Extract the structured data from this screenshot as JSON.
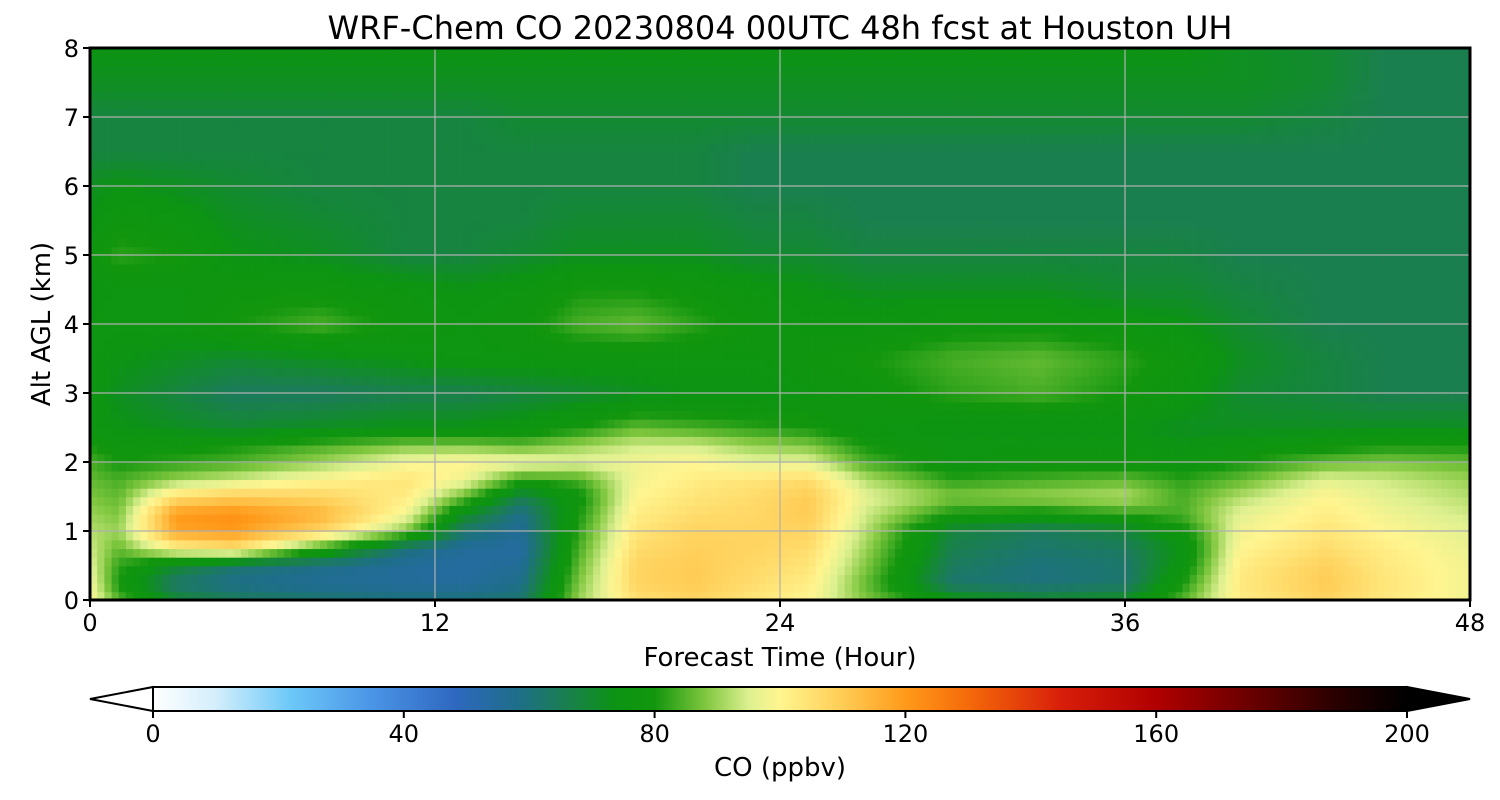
{
  "chart_data": {
    "type": "heatmap",
    "title": "WRF-Chem CO  20230804 00UTC 48h fcst at Houston UH",
    "xlabel": "Forecast Time (Hour)",
    "ylabel": "Alt AGL (km)",
    "xlim": [
      0,
      48
    ],
    "ylim": [
      0,
      8
    ],
    "xticks": [
      0,
      12,
      24,
      36,
      48
    ],
    "yticks": [
      0,
      1,
      2,
      3,
      4,
      5,
      6,
      7,
      8
    ],
    "grid": true,
    "x_hours": [
      0,
      1,
      3,
      5,
      8,
      11,
      13,
      15,
      17,
      19,
      21,
      23,
      25,
      27,
      30,
      33,
      36,
      38,
      40,
      43,
      45,
      48
    ],
    "y_km": [
      0,
      0.25,
      0.5,
      0.75,
      1.0,
      1.25,
      1.5,
      1.75,
      2.0,
      2.25,
      2.5,
      3.0,
      3.5,
      4.0,
      4.5,
      5.0,
      5.5,
      6.0,
      6.5,
      7.0,
      7.5,
      8.0
    ],
    "z": [
      [
        100,
        85,
        70,
        65,
        62,
        60,
        60,
        62,
        90,
        105,
        108,
        104,
        100,
        88,
        75,
        70,
        72,
        85,
        102,
        108,
        103,
        98
      ],
      [
        98,
        80,
        62,
        58,
        56,
        55,
        55,
        58,
        88,
        108,
        110,
        106,
        102,
        86,
        62,
        60,
        62,
        80,
        103,
        110,
        104,
        98
      ],
      [
        96,
        82,
        70,
        62,
        58,
        55,
        54,
        56,
        86,
        108,
        110,
        107,
        104,
        88,
        64,
        60,
        62,
        76,
        102,
        109,
        103,
        98
      ],
      [
        94,
        86,
        100,
        105,
        82,
        60,
        55,
        54,
        84,
        106,
        109,
        108,
        106,
        90,
        66,
        62,
        64,
        74,
        100,
        106,
        102,
        97
      ],
      [
        92,
        90,
        118,
        120,
        108,
        88,
        62,
        56,
        82,
        104,
        108,
        108,
        108,
        92,
        68,
        64,
        68,
        78,
        98,
        104,
        100,
        96
      ],
      [
        90,
        88,
        120,
        122,
        115,
        98,
        72,
        58,
        80,
        102,
        106,
        107,
        110,
        94,
        80,
        78,
        82,
        84,
        96,
        102,
        98,
        94
      ],
      [
        88,
        86,
        106,
        110,
        108,
        102,
        86,
        66,
        78,
        100,
        104,
        106,
        110,
        96,
        88,
        90,
        92,
        84,
        92,
        100,
        96,
        92
      ],
      [
        86,
        84,
        90,
        94,
        100,
        104,
        98,
        82,
        84,
        98,
        102,
        104,
        106,
        92,
        82,
        84,
        86,
        82,
        86,
        96,
        94,
        90
      ],
      [
        84,
        80,
        82,
        84,
        90,
        98,
        100,
        98,
        96,
        98,
        100,
        96,
        96,
        84,
        76,
        78,
        78,
        76,
        80,
        86,
        88,
        86
      ],
      [
        80,
        78,
        78,
        80,
        84,
        88,
        88,
        86,
        90,
        94,
        94,
        90,
        88,
        80,
        76,
        76,
        76,
        74,
        76,
        78,
        80,
        80
      ],
      [
        76,
        74,
        72,
        70,
        72,
        74,
        74,
        76,
        80,
        86,
        84,
        82,
        80,
        76,
        74,
        74,
        74,
        72,
        72,
        72,
        72,
        72
      ],
      [
        76,
        72,
        68,
        64,
        64,
        66,
        66,
        68,
        70,
        72,
        74,
        74,
        76,
        78,
        82,
        84,
        80,
        76,
        70,
        68,
        66,
        66
      ],
      [
        76,
        74,
        72,
        70,
        72,
        74,
        76,
        76,
        76,
        76,
        76,
        76,
        78,
        80,
        84,
        86,
        82,
        78,
        72,
        68,
        66,
        66
      ],
      [
        76,
        76,
        76,
        80,
        84,
        78,
        76,
        78,
        84,
        86,
        82,
        78,
        76,
        76,
        78,
        78,
        76,
        74,
        70,
        66,
        66,
        66
      ],
      [
        74,
        76,
        76,
        78,
        78,
        76,
        74,
        76,
        80,
        80,
        78,
        76,
        74,
        72,
        72,
        72,
        70,
        70,
        68,
        66,
        66,
        66
      ],
      [
        78,
        82,
        80,
        74,
        72,
        68,
        68,
        70,
        72,
        72,
        72,
        70,
        70,
        68,
        68,
        68,
        68,
        68,
        66,
        66,
        66,
        66
      ],
      [
        74,
        78,
        76,
        72,
        70,
        68,
        68,
        68,
        70,
        70,
        70,
        68,
        68,
        66,
        66,
        66,
        66,
        66,
        66,
        66,
        66,
        66
      ],
      [
        72,
        74,
        72,
        70,
        68,
        68,
        68,
        68,
        68,
        68,
        68,
        66,
        66,
        66,
        66,
        66,
        66,
        66,
        66,
        66,
        66,
        66
      ],
      [
        68,
        68,
        68,
        68,
        68,
        68,
        68,
        68,
        68,
        68,
        68,
        66,
        66,
        66,
        66,
        66,
        66,
        66,
        66,
        66,
        66,
        66
      ],
      [
        68,
        68,
        68,
        68,
        68,
        68,
        68,
        70,
        70,
        70,
        70,
        70,
        70,
        70,
        70,
        70,
        70,
        70,
        70,
        68,
        66,
        66
      ],
      [
        72,
        72,
        72,
        72,
        72,
        72,
        72,
        72,
        72,
        72,
        72,
        72,
        72,
        72,
        72,
        72,
        72,
        72,
        72,
        70,
        66,
        66
      ],
      [
        74,
        74,
        74,
        74,
        74,
        74,
        74,
        74,
        74,
        74,
        74,
        74,
        74,
        74,
        74,
        74,
        74,
        74,
        72,
        70,
        66,
        66
      ]
    ],
    "colorbar": {
      "label": "CO  (ppbv)",
      "ticks": [
        0,
        40,
        80,
        120,
        160,
        200
      ],
      "min": 0,
      "max": 200,
      "extend": "both",
      "orientation": "horizontal",
      "placement": "bottom"
    },
    "colormap": [
      [
        0,
        "#ffffff"
      ],
      [
        10,
        "#d4eefb"
      ],
      [
        22,
        "#6cc8f8"
      ],
      [
        35,
        "#4a94e6"
      ],
      [
        48,
        "#2f68c0"
      ],
      [
        58,
        "#1e6e8a"
      ],
      [
        66,
        "#1a7f4f"
      ],
      [
        74,
        "#0c9412"
      ],
      [
        80,
        "#12960e"
      ],
      [
        88,
        "#7ec63e"
      ],
      [
        95,
        "#ddf090"
      ],
      [
        100,
        "#fff590"
      ],
      [
        110,
        "#ffcc55"
      ],
      [
        120,
        "#ff9a1a"
      ],
      [
        130,
        "#f56a0a"
      ],
      [
        145,
        "#d81e0a"
      ],
      [
        160,
        "#b00000"
      ],
      [
        175,
        "#6a0000"
      ],
      [
        190,
        "#240000"
      ],
      [
        200,
        "#000000"
      ]
    ]
  }
}
